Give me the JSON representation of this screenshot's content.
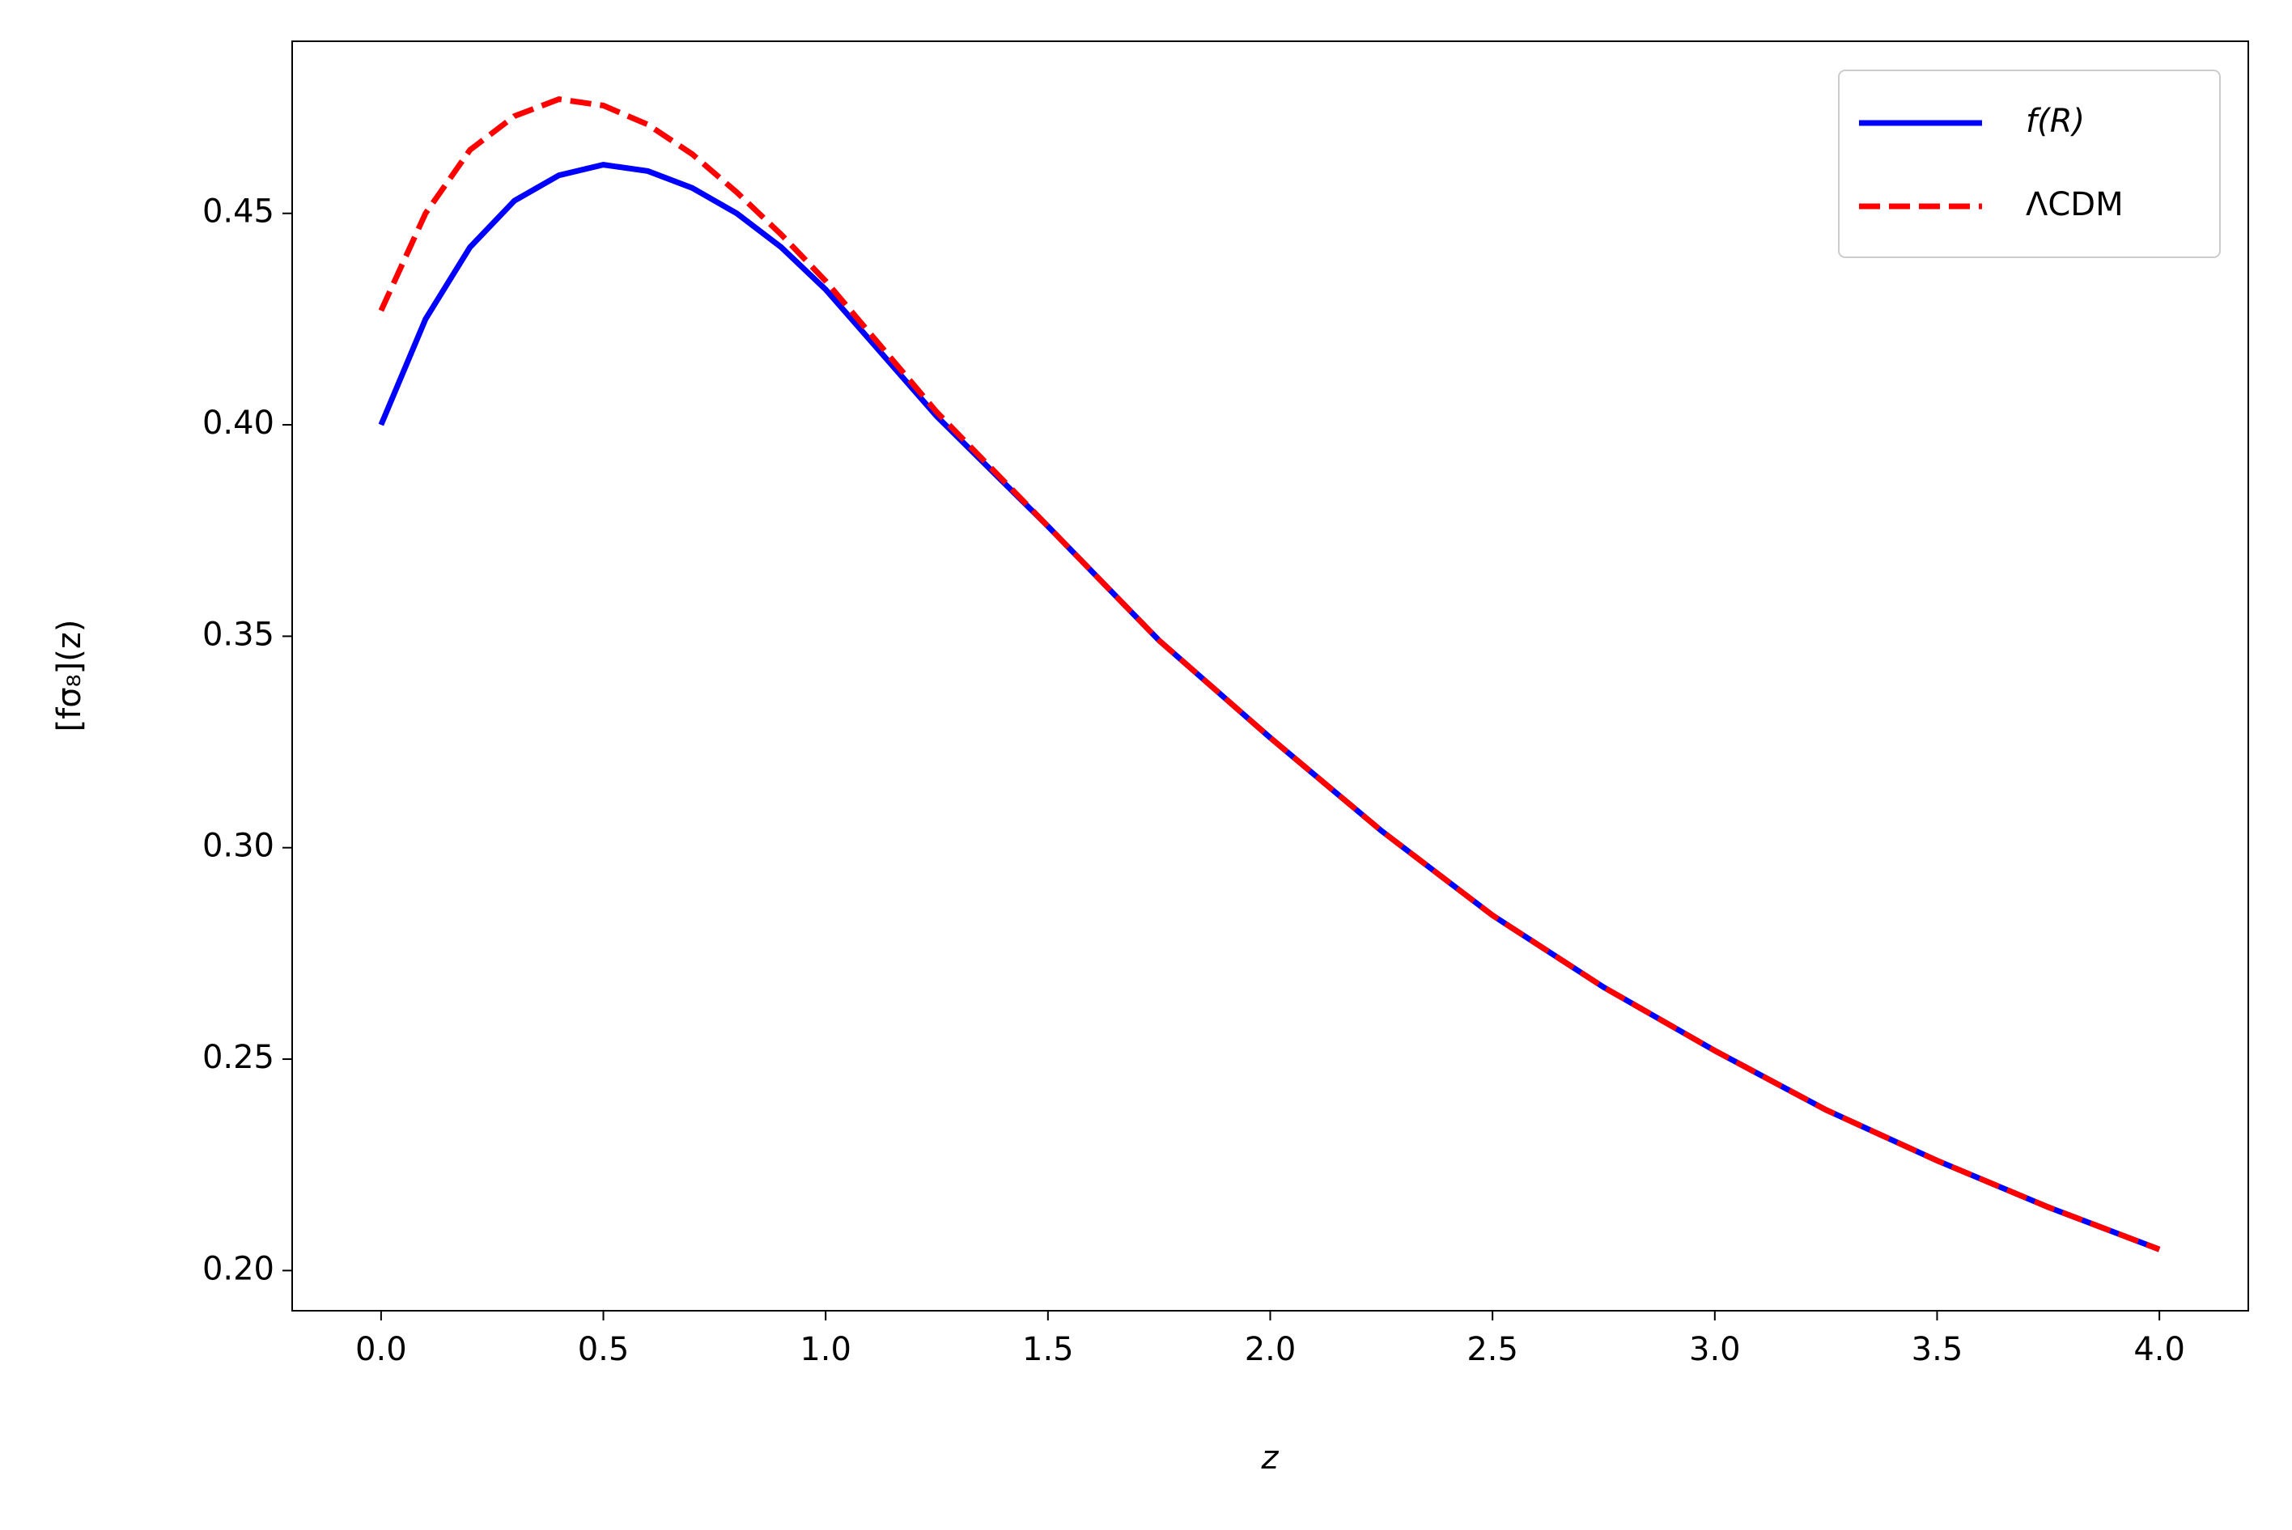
{
  "chart_data": {
    "type": "line",
    "x_label": "z",
    "y_label": "[fσ₈](z)",
    "x": [
      0,
      0.1,
      0.2,
      0.3,
      0.4,
      0.5,
      0.6,
      0.7,
      0.8,
      0.9,
      1.0,
      1.25,
      1.5,
      1.75,
      2.0,
      2.25,
      2.5,
      2.75,
      3.0,
      3.25,
      3.5,
      3.75,
      4.0
    ],
    "series": [
      {
        "name": "f(R)",
        "color": "#0000ff",
        "style": "solid",
        "values": [
          0.4,
          0.425,
          0.442,
          0.453,
          0.459,
          0.4615,
          0.46,
          0.456,
          0.45,
          0.442,
          0.432,
          0.402,
          0.376,
          0.349,
          0.326,
          0.304,
          0.284,
          0.267,
          0.252,
          0.238,
          0.226,
          0.215,
          0.205
        ]
      },
      {
        "name": "ΛCDM",
        "color": "#ff0000",
        "style": "dashed",
        "values": [
          0.427,
          0.45,
          0.465,
          0.473,
          0.477,
          0.4755,
          0.471,
          0.464,
          0.455,
          0.445,
          0.434,
          0.403,
          0.376,
          0.349,
          0.326,
          0.304,
          0.284,
          0.267,
          0.252,
          0.238,
          0.226,
          0.215,
          0.205
        ]
      }
    ],
    "xlim": [
      -0.2,
      4.2
    ],
    "ylim": [
      0.1905,
      0.4907
    ],
    "xticks": [
      {
        "value": 0,
        "label": "0.0"
      },
      0.5,
      {
        "value": 1,
        "label": "1.0"
      },
      1.5,
      {
        "value": 2,
        "label": "2.0"
      },
      2.5,
      {
        "value": 3,
        "label": "3.0"
      },
      3.5,
      {
        "value": 4,
        "label": "4.0"
      }
    ],
    "yticks": [
      {
        "value": 0.2,
        "label": "0.20"
      },
      0.25,
      {
        "value": 0.3,
        "label": "0.30"
      },
      0.35,
      {
        "value": 0.4,
        "label": "0.40"
      },
      0.45
    ],
    "grid": false,
    "legend": "upper right"
  }
}
